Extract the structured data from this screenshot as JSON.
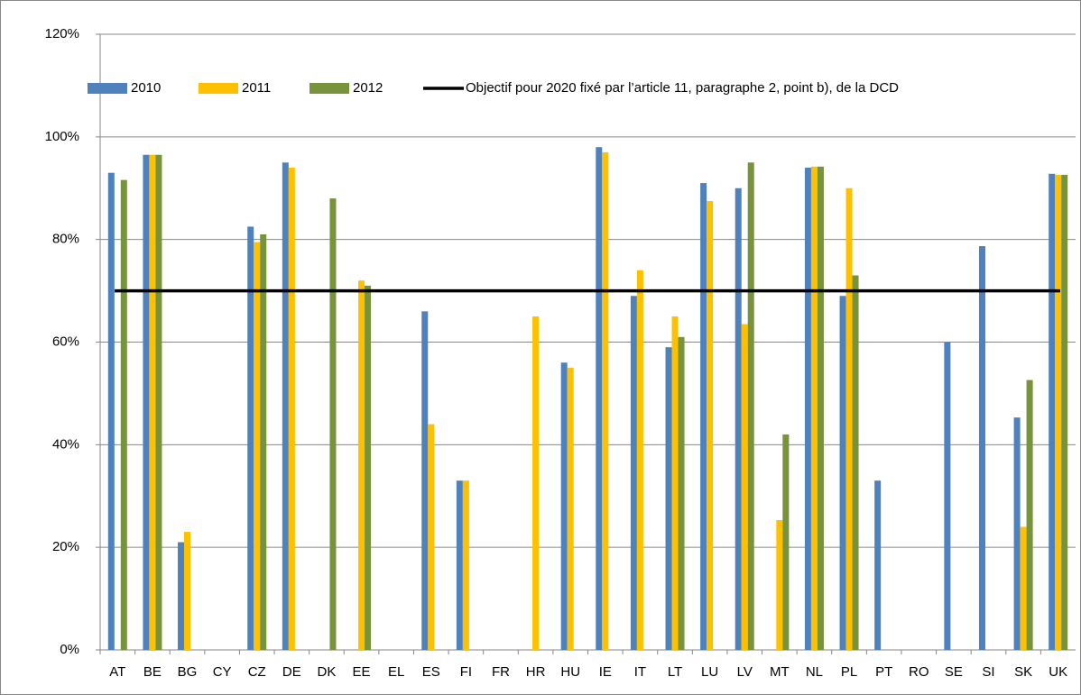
{
  "chart_data": {
    "type": "bar",
    "categories": [
      "AT",
      "BE",
      "BG",
      "CY",
      "CZ",
      "DE",
      "DK",
      "EE",
      "EL",
      "ES",
      "FI",
      "FR",
      "HR",
      "HU",
      "IE",
      "IT",
      "LT",
      "LU",
      "LV",
      "MT",
      "NL",
      "PL",
      "PT",
      "RO",
      "SE",
      "SI",
      "SK",
      "UK"
    ],
    "series": [
      {
        "name": "2010",
        "color": "#4f81bd",
        "values": [
          93,
          96.5,
          21,
          null,
          82.5,
          95,
          null,
          null,
          null,
          66,
          33,
          null,
          null,
          56,
          98,
          69,
          59,
          91,
          90,
          null,
          94,
          69,
          33,
          null,
          60,
          78.7,
          45.3,
          92.8
        ]
      },
      {
        "name": "2011",
        "color": "#ffc000",
        "values": [
          null,
          96.5,
          23,
          null,
          79.5,
          94,
          null,
          72,
          null,
          44,
          33,
          null,
          65,
          55,
          97,
          74,
          65,
          87.5,
          63.5,
          25.3,
          94.2,
          90,
          null,
          null,
          null,
          null,
          24,
          92.6
        ]
      },
      {
        "name": "2012",
        "color": "#77933c",
        "values": [
          91.6,
          96.5,
          null,
          null,
          81,
          null,
          88,
          71,
          null,
          null,
          null,
          null,
          null,
          null,
          null,
          null,
          61,
          null,
          95,
          42,
          94.2,
          73,
          null,
          null,
          null,
          null,
          52.6,
          92.6
        ]
      }
    ],
    "reference_line": {
      "name": "Objectif pour 2020 fixé par l’article 11, paragraphe 2, point b), de la DCD",
      "value": 70,
      "color": "#000000"
    },
    "ylim": [
      0,
      120
    ],
    "yticks": [
      {
        "value": 0,
        "label": "0%"
      },
      {
        "value": 20,
        "label": "20%"
      },
      {
        "value": 40,
        "label": "40%"
      },
      {
        "value": 60,
        "label": "60%"
      },
      {
        "value": 80,
        "label": "80%"
      },
      {
        "value": 100,
        "label": "100%"
      },
      {
        "value": 120,
        "label": "120%"
      }
    ],
    "grid": true
  }
}
